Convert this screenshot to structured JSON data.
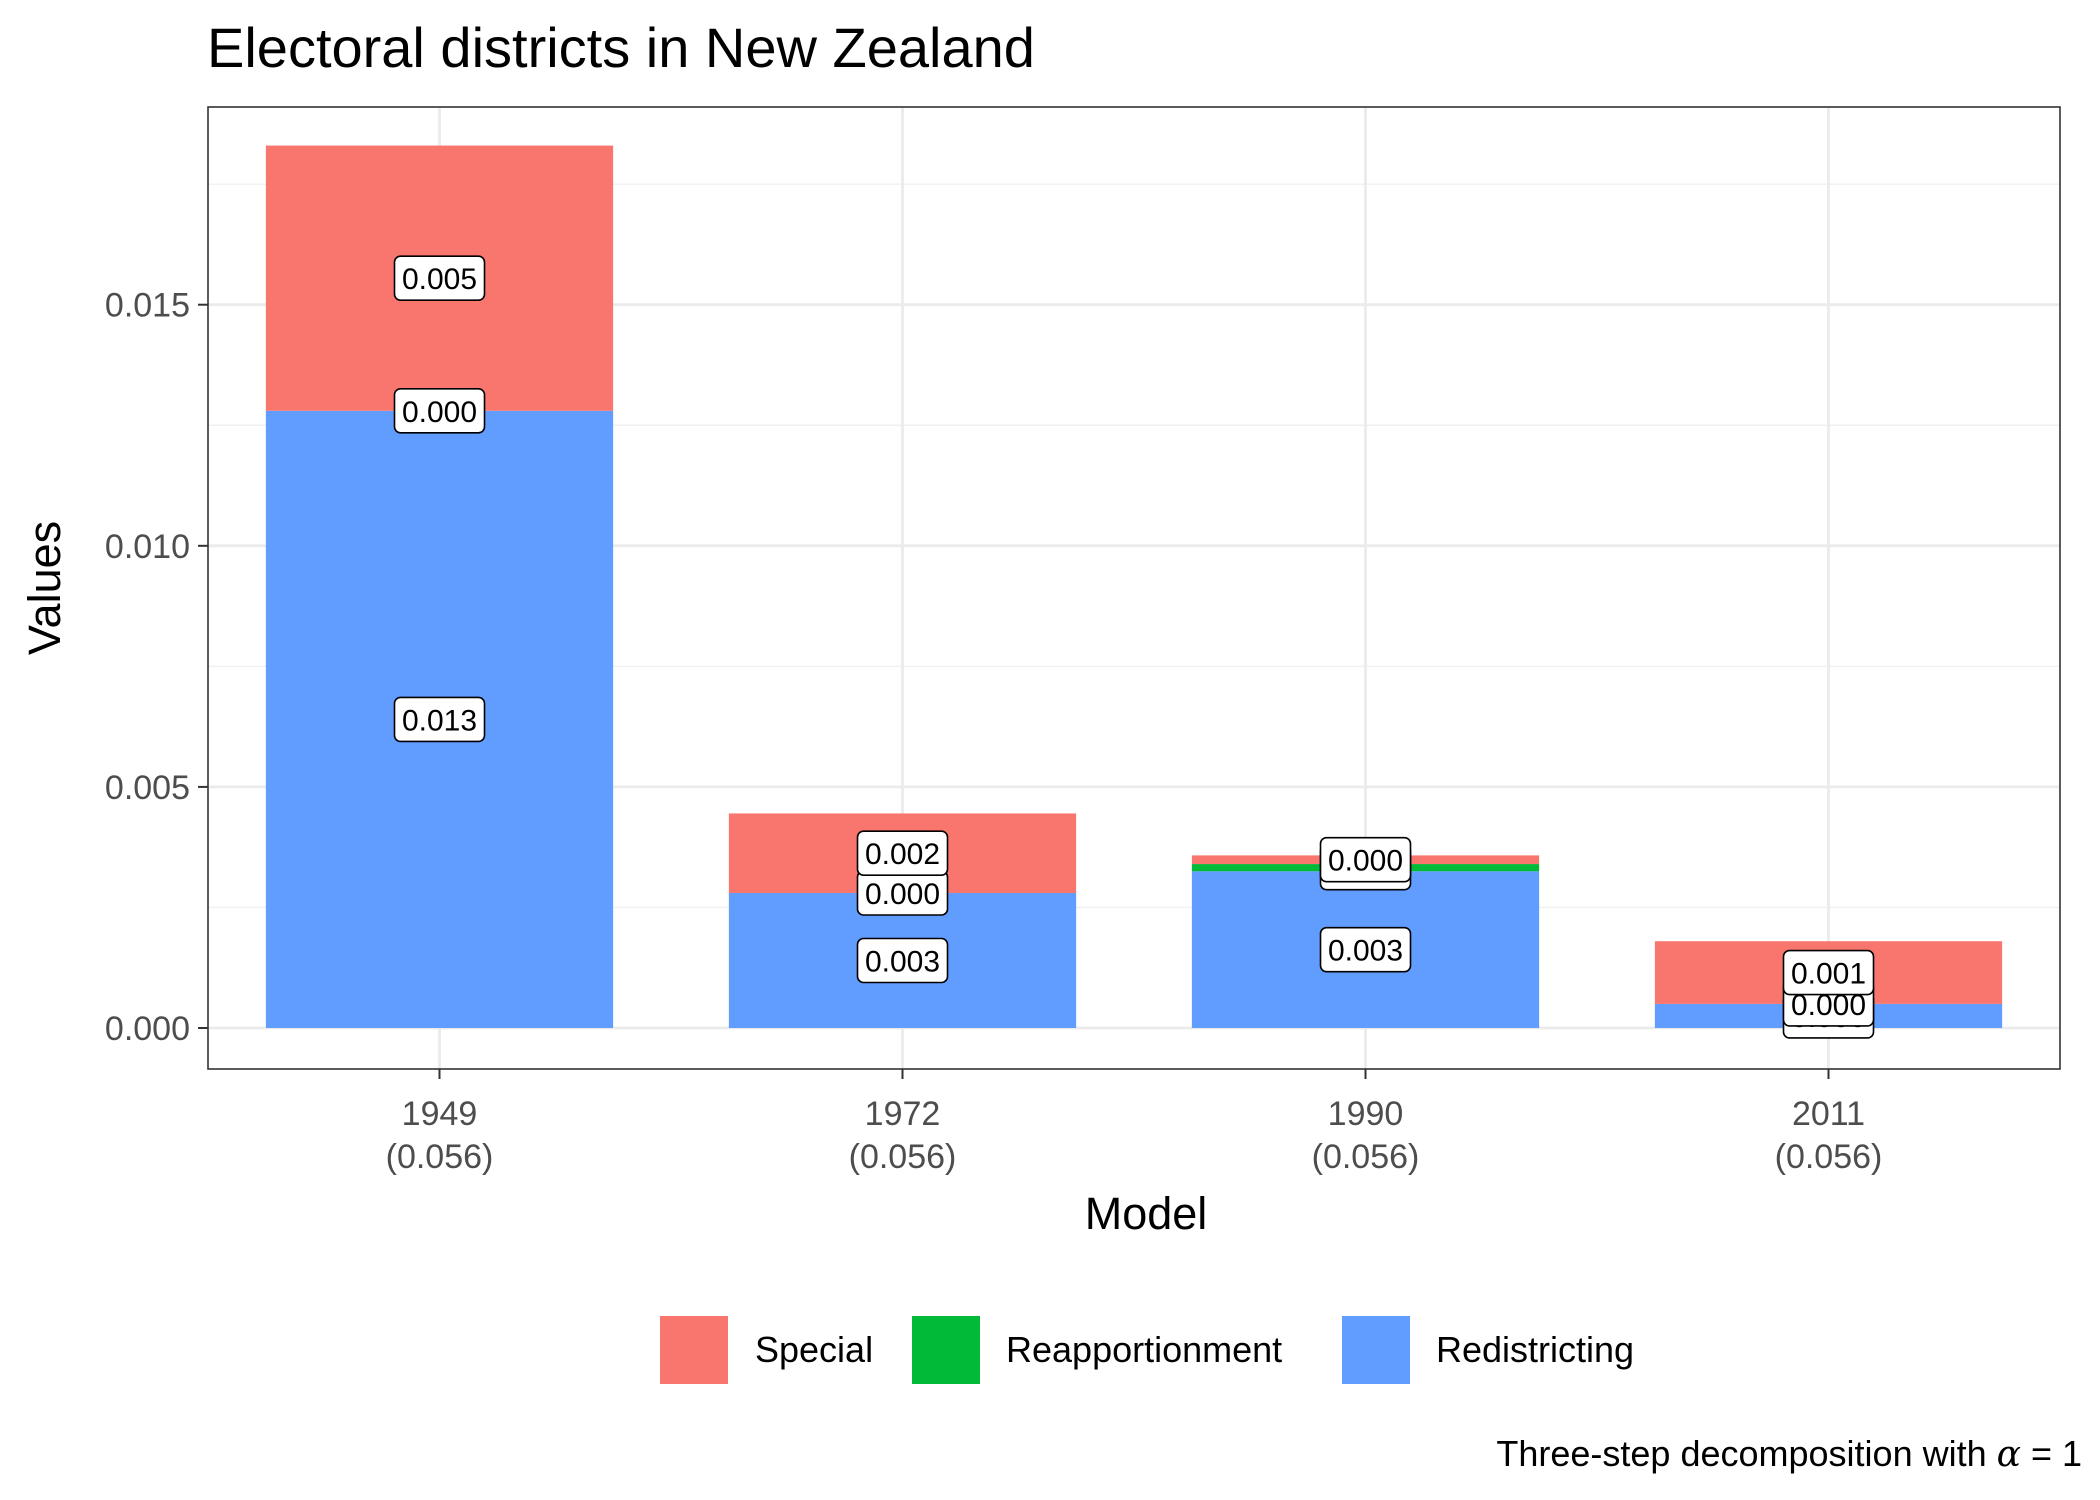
{
  "chart_data": {
    "type": "bar",
    "stacked": true,
    "title": "Electoral districts in New Zealand",
    "xlabel": "Model",
    "ylabel": "Values",
    "caption_prefix": "Three-step decomposition with ",
    "caption_symbol": "α",
    "caption_suffix": " = 1",
    "categories": [
      "1949",
      "1972",
      "1990",
      "2011"
    ],
    "category_sublabels": [
      "(0.056)",
      "(0.056)",
      "(0.056)",
      "(0.056)"
    ],
    "ylim": [
      -0.00085,
      0.0191
    ],
    "yticks": [
      0.0,
      0.005,
      0.01,
      0.015
    ],
    "ytick_labels": [
      "0.000",
      "0.005",
      "0.010",
      "0.015"
    ],
    "grid": true,
    "legend_position": "bottom",
    "series": [
      {
        "name": "Redistricting",
        "color": "#619CFF",
        "values": [
          0.0128,
          0.0028,
          0.00325,
          0.0005
        ],
        "labels": [
          "0.013",
          "0.003",
          "0.003",
          "0.000"
        ]
      },
      {
        "name": "Reapportionment",
        "color": "#00BA38",
        "values": [
          0.0,
          0.0,
          0.00015,
          0.0
        ],
        "labels": [
          "0.000",
          "0.000",
          "0.000",
          "0.000"
        ]
      },
      {
        "name": "Special",
        "color": "#F8766D",
        "values": [
          0.0055,
          0.00165,
          0.00018,
          0.0013
        ],
        "labels": [
          "0.005",
          "0.002",
          "0.000",
          "0.001"
        ]
      }
    ],
    "legend_order": [
      "Special",
      "Reapportionment",
      "Redistricting"
    ]
  }
}
